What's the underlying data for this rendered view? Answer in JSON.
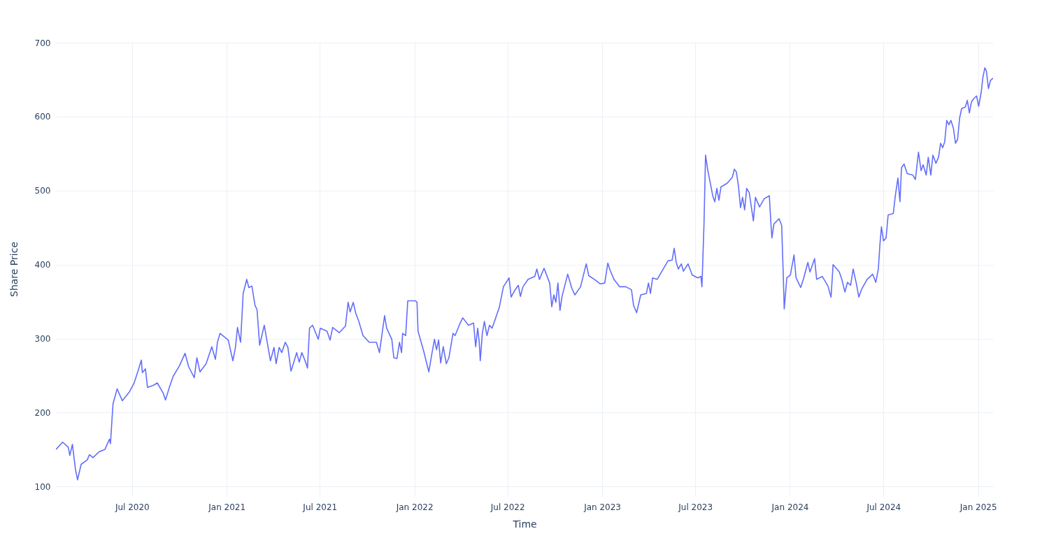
{
  "chart_data": {
    "type": "line",
    "xlabel": "Time",
    "ylabel": "Share Price",
    "x": [
      "2020-02-04",
      "2020-02-17",
      "2020-02-28",
      "2020-03-02",
      "2020-03-07",
      "2020-03-13",
      "2020-03-17",
      "2020-03-24",
      "2020-04-05",
      "2020-04-09",
      "2020-04-16",
      "2020-04-28",
      "2020-05-09",
      "2020-05-18",
      "2020-05-20",
      "2020-05-23",
      "2020-05-25",
      "2020-06-02",
      "2020-06-12",
      "2020-06-26",
      "2020-07-05",
      "2020-07-13",
      "2020-07-19",
      "2020-07-21",
      "2020-07-27",
      "2020-07-31",
      "2020-08-12",
      "2020-08-19",
      "2020-08-30",
      "2020-09-04",
      "2020-09-12",
      "2020-09-19",
      "2020-10-01",
      "2020-10-12",
      "2020-10-19",
      "2020-10-30",
      "2020-11-04",
      "2020-11-10",
      "2020-11-22",
      "2020-12-03",
      "2020-12-10",
      "2020-12-14",
      "2020-12-19",
      "2021-01-04",
      "2021-01-13",
      "2021-01-18",
      "2021-01-22",
      "2021-01-28",
      "2021-02-02",
      "2021-02-09",
      "2021-02-13",
      "2021-02-19",
      "2021-02-25",
      "2021-03-01",
      "2021-03-06",
      "2021-03-15",
      "2021-03-23",
      "2021-03-27",
      "2021-04-03",
      "2021-04-07",
      "2021-04-13",
      "2021-04-18",
      "2021-04-25",
      "2021-04-30",
      "2021-05-06",
      "2021-05-11",
      "2021-05-17",
      "2021-05-22",
      "2021-05-27",
      "2021-06-03",
      "2021-06-07",
      "2021-06-11",
      "2021-06-17",
      "2021-06-28",
      "2021-07-02",
      "2021-07-15",
      "2021-07-21",
      "2021-07-26",
      "2021-08-08",
      "2021-08-20",
      "2021-08-25",
      "2021-08-29",
      "2021-09-04",
      "2021-09-09",
      "2021-09-15",
      "2021-09-23",
      "2021-10-05",
      "2021-10-19",
      "2021-10-25",
      "2021-10-30",
      "2021-11-04",
      "2021-11-08",
      "2021-11-18",
      "2021-11-22",
      "2021-11-28",
      "2021-12-03",
      "2021-12-07",
      "2021-12-09",
      "2021-12-15",
      "2021-12-19",
      "2022-01-03",
      "2022-01-06",
      "2022-01-08",
      "2022-01-14",
      "2022-01-19",
      "2022-01-25",
      "2022-01-29",
      "2022-02-03",
      "2022-02-09",
      "2022-02-13",
      "2022-02-17",
      "2022-02-21",
      "2022-02-26",
      "2022-03-04",
      "2022-03-09",
      "2022-03-17",
      "2022-03-21",
      "2022-03-31",
      "2022-04-05",
      "2022-04-16",
      "2022-04-26",
      "2022-04-30",
      "2022-05-04",
      "2022-05-07",
      "2022-05-09",
      "2022-05-13",
      "2022-05-17",
      "2022-05-22",
      "2022-05-27",
      "2022-06-01",
      "2022-06-07",
      "2022-06-15",
      "2022-06-23",
      "2022-07-04",
      "2022-07-08",
      "2022-07-14",
      "2022-07-22",
      "2022-07-26",
      "2022-07-31",
      "2022-08-10",
      "2022-08-23",
      "2022-08-27",
      "2022-09-01",
      "2022-09-10",
      "2022-09-21",
      "2022-09-25",
      "2022-09-29",
      "2022-10-03",
      "2022-10-07",
      "2022-10-11",
      "2022-10-15",
      "2022-10-26",
      "2022-11-03",
      "2022-11-09",
      "2022-11-20",
      "2022-12-01",
      "2022-12-06",
      "2022-12-17",
      "2022-12-28",
      "2023-01-06",
      "2023-01-12",
      "2023-01-16",
      "2023-01-24",
      "2023-02-04",
      "2023-02-16",
      "2023-02-27",
      "2023-03-03",
      "2023-03-09",
      "2023-03-17",
      "2023-03-28",
      "2023-04-01",
      "2023-04-05",
      "2023-04-09",
      "2023-04-18",
      "2023-04-28",
      "2023-05-09",
      "2023-05-17",
      "2023-05-21",
      "2023-05-25",
      "2023-05-29",
      "2023-06-04",
      "2023-06-08",
      "2023-06-17",
      "2023-06-25",
      "2023-07-06",
      "2023-07-12",
      "2023-07-14",
      "2023-07-18",
      "2023-07-21",
      "2023-07-25",
      "2023-08-04",
      "2023-08-08",
      "2023-08-12",
      "2023-08-16",
      "2023-08-20",
      "2023-09-01",
      "2023-09-11",
      "2023-09-15",
      "2023-09-19",
      "2023-09-23",
      "2023-09-27",
      "2023-10-01",
      "2023-10-05",
      "2023-10-09",
      "2023-10-14",
      "2023-10-18",
      "2023-10-22",
      "2023-10-26",
      "2023-11-03",
      "2023-11-12",
      "2023-11-22",
      "2023-11-25",
      "2023-11-27",
      "2023-12-01",
      "2023-12-11",
      "2023-12-16",
      "2023-12-19",
      "2023-12-21",
      "2023-12-26",
      "2024-01-02",
      "2024-01-09",
      "2024-01-13",
      "2024-01-22",
      "2024-01-28",
      "2024-02-05",
      "2024-02-09",
      "2024-02-18",
      "2024-02-22",
      "2024-03-04",
      "2024-03-15",
      "2024-03-21",
      "2024-03-25",
      "2024-04-06",
      "2024-04-11",
      "2024-04-17",
      "2024-04-22",
      "2024-04-28",
      "2024-05-03",
      "2024-05-09",
      "2024-05-14",
      "2024-05-19",
      "2024-05-30",
      "2024-06-10",
      "2024-06-16",
      "2024-06-21",
      "2024-06-24",
      "2024-06-27",
      "2024-07-01",
      "2024-07-06",
      "2024-07-10",
      "2024-07-20",
      "2024-07-24",
      "2024-07-29",
      "2024-08-02",
      "2024-08-05",
      "2024-08-10",
      "2024-08-16",
      "2024-08-27",
      "2024-09-01",
      "2024-09-07",
      "2024-09-12",
      "2024-09-16",
      "2024-09-22",
      "2024-09-26",
      "2024-10-01",
      "2024-10-05",
      "2024-10-11",
      "2024-10-16",
      "2024-10-20",
      "2024-10-24",
      "2024-10-28",
      "2024-11-01",
      "2024-11-05",
      "2024-11-09",
      "2024-11-14",
      "2024-11-18",
      "2024-11-22",
      "2024-11-26",
      "2024-11-30",
      "2024-12-07",
      "2024-12-11",
      "2024-12-15",
      "2024-12-19",
      "2024-12-23",
      "2024-12-29",
      "2025-01-02",
      "2025-01-07",
      "2025-01-10",
      "2025-01-14",
      "2025-01-17",
      "2025-01-21",
      "2025-01-25",
      "2025-01-30"
    ],
    "series": [
      {
        "color": "#636efa",
        "values": [
          150,
          160,
          153,
          142,
          157,
          123,
          109,
          130,
          136,
          143,
          139,
          147,
          150,
          164,
          158,
          191,
          212,
          232,
          216,
          228,
          240,
          257,
          271,
          254,
          259,
          234,
          237,
          240,
          227,
          217,
          235,
          249,
          263,
          280,
          262,
          247,
          274,
          255,
          266,
          289,
          272,
          295,
          307,
          298,
          270,
          288,
          315,
          295,
          361,
          380,
          369,
          371,
          345,
          339,
          291,
          318,
          286,
          270,
          288,
          266,
          288,
          281,
          295,
          288,
          256,
          267,
          281,
          268,
          281,
          269,
          260,
          314,
          318,
          299,
          314,
          310,
          298,
          315,
          308,
          317,
          349,
          336,
          349,
          334,
          323,
          304,
          295,
          295,
          281,
          306,
          331,
          314,
          299,
          274,
          273,
          295,
          281,
          307,
          304,
          351,
          351,
          349,
          310,
          295,
          283,
          266,
          255,
          276,
          299,
          285,
          298,
          267,
          289,
          266,
          274,
          307,
          304,
          321,
          328,
          318,
          321,
          289,
          314,
          295,
          270,
          307,
          323,
          304,
          318,
          314,
          326,
          342,
          370,
          382,
          356,
          364,
          372,
          357,
          370,
          380,
          384,
          394,
          380,
          395,
          375,
          343,
          359,
          349,
          375,
          338,
          357,
          387,
          368,
          359,
          370,
          401,
          385,
          380,
          374,
          375,
          402,
          393,
          380,
          370,
          370,
          366,
          345,
          335,
          359,
          361,
          375,
          361,
          382,
          380,
          392,
          405,
          406,
          422,
          403,
          394,
          401,
          391,
          401,
          386,
          382,
          384,
          370,
          455,
          548,
          529,
          493,
          485,
          503,
          487,
          505,
          510,
          518,
          529,
          525,
          506,
          477,
          491,
          474,
          503,
          497,
          478,
          459,
          491,
          478,
          489,
          493,
          457,
          436,
          455,
          462,
          453,
          389,
          340,
          382,
          386,
          413,
          382,
          369,
          382,
          403,
          390,
          408,
          380,
          384,
          371,
          356,
          400,
          390,
          380,
          363,
          376,
          372,
          394,
          375,
          356,
          366,
          380,
          387,
          376,
          394,
          427,
          451,
          432,
          436,
          467,
          469,
          493,
          517,
          485,
          531,
          536,
          523,
          521,
          515,
          552,
          527,
          535,
          521,
          545,
          521,
          548,
          537,
          545,
          564,
          558,
          566,
          595,
          589,
          595,
          584,
          564,
          569,
          598,
          611,
          613,
          622,
          605,
          620,
          624,
          628,
          614,
          633,
          652,
          666,
          662,
          638,
          649,
          652
        ]
      }
    ],
    "xlim": [
      "2020-02-04",
      "2025-01-30"
    ],
    "xticks": [
      {
        "value": "2020-07-01",
        "label": "Jul 2020"
      },
      {
        "value": "2021-01-01",
        "label": "Jan 2021"
      },
      {
        "value": "2021-07-01",
        "label": "Jul 2021"
      },
      {
        "value": "2022-01-01",
        "label": "Jan 2022"
      },
      {
        "value": "2022-07-01",
        "label": "Jul 2022"
      },
      {
        "value": "2023-01-01",
        "label": "Jan 2023"
      },
      {
        "value": "2023-07-01",
        "label": "Jul 2023"
      },
      {
        "value": "2024-01-01",
        "label": "Jan 2024"
      },
      {
        "value": "2024-07-01",
        "label": "Jul 2024"
      },
      {
        "value": "2025-01-01",
        "label": "Jan 2025"
      }
    ],
    "ylim": [
      87,
      701
    ],
    "yticks": [
      100,
      200,
      300,
      400,
      500,
      600,
      700
    ],
    "grid": true
  }
}
